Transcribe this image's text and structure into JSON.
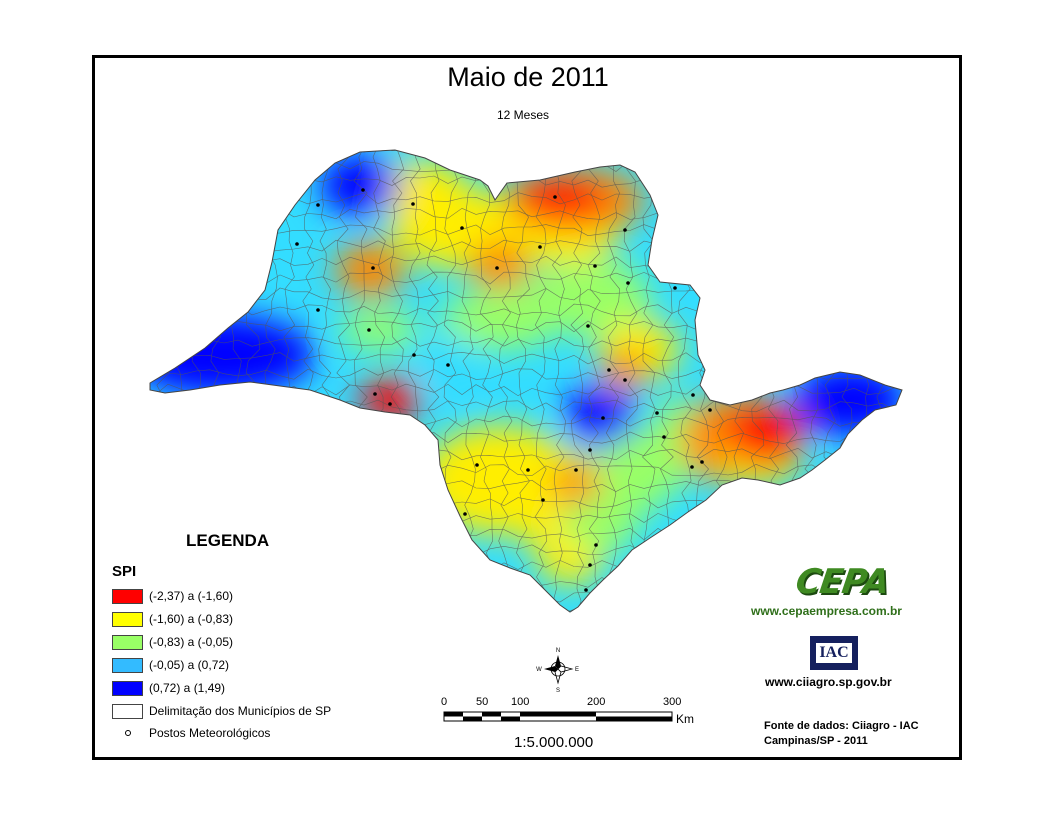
{
  "title": "Maio de 2011",
  "subtitle": "12 Meses",
  "legend": {
    "title": "LEGENDA",
    "spi_title": "SPI",
    "classes": [
      {
        "label": "(-2,37) a (-1,60)",
        "color": "#ff0000"
      },
      {
        "label": "(-1,60) a (-0,83)",
        "color": "#ffff00"
      },
      {
        "label": "(-0,83) a (-0,05)",
        "color": "#99ff66"
      },
      {
        "label": "(-0,05) a (0,72)",
        "color": "#33bbff"
      },
      {
        "label": "(0,72) a (1,49)",
        "color": "#0000ff"
      }
    ],
    "municipios_label": "Delimitação dos Municípios de SP",
    "postos_label": "Postos Meteorológicos"
  },
  "scale": {
    "ticks": [
      "0",
      "50",
      "100",
      "200",
      "300"
    ],
    "unit": "Km",
    "ratio": "1:5.000.000"
  },
  "north_arrow": {
    "n": "N",
    "s": "S",
    "e": "E",
    "w": "W"
  },
  "logos": {
    "cepa_text": "CEPA",
    "cepa_url": "www.cepaempresa.com.br",
    "iac_text": "IAC",
    "iac_url": "www.ciiagro.sp.gov.br"
  },
  "source": {
    "line1": "Fonte de dados: Ciiagro - IAC",
    "line2": "Campinas/SP - 2011"
  },
  "colors": {
    "spi_red": "#ff0000",
    "spi_orange": "#ff8800",
    "spi_yellow": "#ffee00",
    "spi_green": "#99ff66",
    "spi_cyan": "#33ddff",
    "spi_blue": "#0000ff",
    "boundary": "#555555"
  }
}
